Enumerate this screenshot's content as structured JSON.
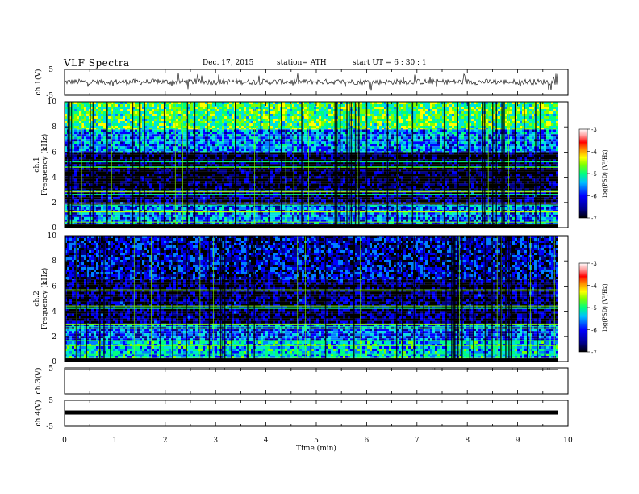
{
  "header": {
    "title": "VLF  Spectra",
    "date": "Dec. 17, 2015",
    "station": "station= ATH",
    "start": "start  UT  =    6  : 30 : 1"
  },
  "colors": {
    "colormap": [
      "#000000",
      "#00008b",
      "#0000ff",
      "#0080ff",
      "#00e0e0",
      "#00ff80",
      "#80ff00",
      "#ffff00",
      "#ff8000",
      "#ff0000",
      "#ffc0c0",
      "#ffffff"
    ]
  },
  "chart_data": [
    {
      "type": "line",
      "panel": "ch1-waveform",
      "ylabel": "ch.1(V)",
      "ylim": [
        -5,
        5
      ],
      "yticks": [
        "5",
        "-5"
      ],
      "series": [
        {
          "baseline_v": 0.2,
          "noise_amplitude_v": 1.1,
          "spike_amplitude_v": 3.5
        }
      ]
    },
    {
      "type": "heatmap",
      "panel": "ch1-spectrogram",
      "ylabel": "ch.1",
      "ylabel2": "Frequency  (kHz)",
      "ylim": [
        0,
        10
      ],
      "yticks": [
        "0",
        "2",
        "4",
        "6",
        "8",
        "10"
      ],
      "bands_khz": [
        {
          "from": 0,
          "to": 0.2,
          "log_psd": -7
        },
        {
          "from": 0.2,
          "to": 1.8,
          "log_psd": -5.8
        },
        {
          "from": 1.8,
          "to": 3.0,
          "log_psd": -6.6
        },
        {
          "from": 3.0,
          "to": 6.0,
          "log_psd": -6.8
        },
        {
          "from": 6.0,
          "to": 7.8,
          "log_psd": -5.7
        },
        {
          "from": 7.8,
          "to": 10,
          "log_psd": -4.9
        }
      ],
      "colorbar": {
        "label": "log(PSD) (V²/Hz)",
        "range": [
          -7,
          -3
        ],
        "ticks": [
          "-3",
          "-4",
          "-5",
          "-6",
          "-7"
        ]
      }
    },
    {
      "type": "heatmap",
      "panel": "ch2-spectrogram",
      "ylabel": "ch.2",
      "ylabel2": "Frequency  (kHz)",
      "ylim": [
        0,
        10
      ],
      "yticks": [
        "0",
        "2",
        "4",
        "6",
        "8",
        "10"
      ],
      "bands_khz": [
        {
          "from": 0,
          "to": 0.2,
          "log_psd": -7
        },
        {
          "from": 0.2,
          "to": 1.6,
          "log_psd": -5.4
        },
        {
          "from": 1.6,
          "to": 3.0,
          "log_psd": -5.9
        },
        {
          "from": 3.0,
          "to": 6.5,
          "log_psd": -6.6
        },
        {
          "from": 6.5,
          "to": 10,
          "log_psd": -6.3
        }
      ],
      "colorbar": {
        "label": "log(PSD) (V²/Hz)",
        "range": [
          -7,
          -3
        ],
        "ticks": [
          "-3",
          "-4",
          "-5",
          "-6",
          "-7"
        ]
      }
    },
    {
      "type": "line",
      "panel": "ch3-waveform",
      "ylabel": "ch.3(V)",
      "ylim": [
        -5,
        5
      ],
      "yticks": [
        "5"
      ],
      "series": [
        {
          "baseline_v": 4.5
        }
      ]
    },
    {
      "type": "line",
      "panel": "ch4-waveform",
      "ylabel": "ch.4(V)",
      "ylim": [
        -5,
        5
      ],
      "yticks": [
        "5",
        "-5"
      ],
      "series": [
        {
          "baseline_v": 0.3
        }
      ]
    }
  ],
  "xaxis": {
    "label": "Time  (min)",
    "xlim": [
      0,
      10
    ],
    "data_end_min": 9.8,
    "ticks": [
      "0",
      "1",
      "2",
      "3",
      "4",
      "5",
      "6",
      "7",
      "8",
      "9",
      "10"
    ]
  }
}
